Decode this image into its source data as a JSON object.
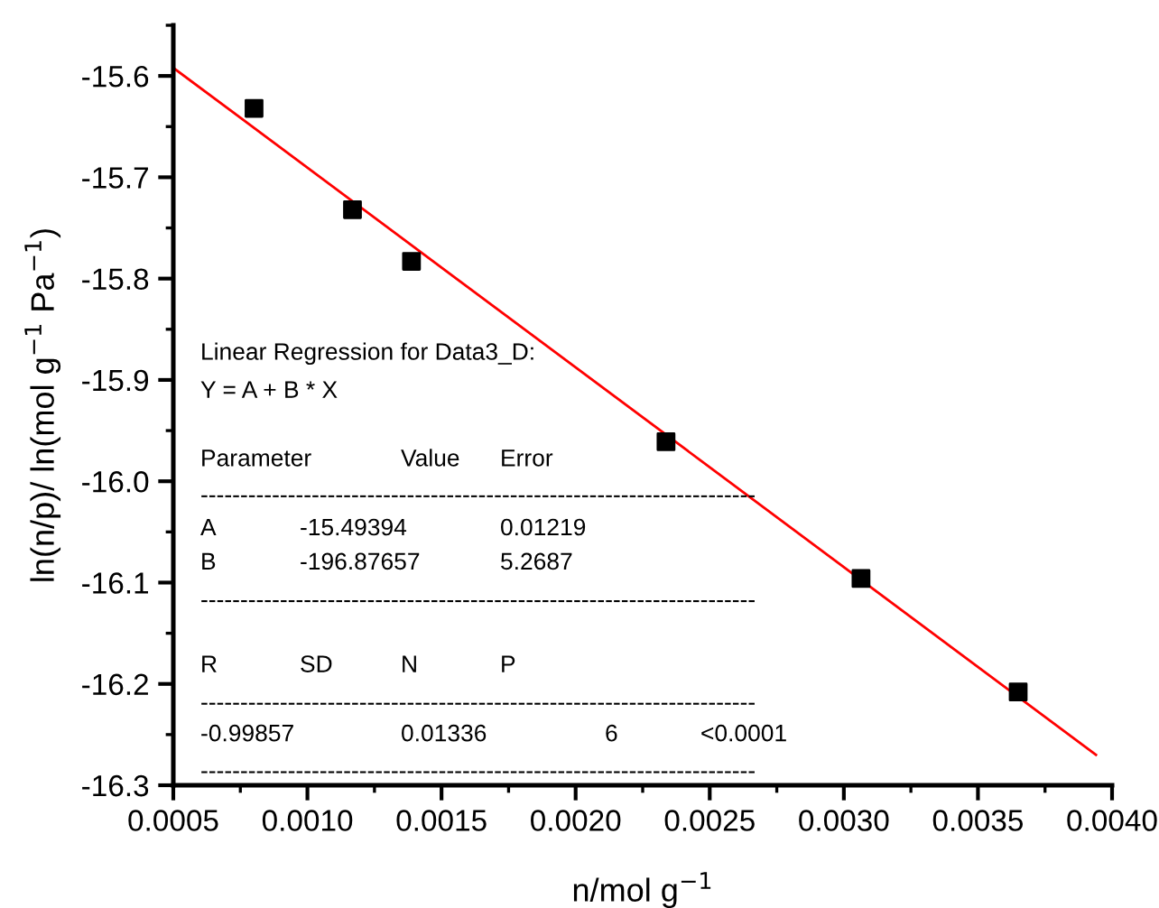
{
  "chart_data": {
    "type": "scatter",
    "xlabel": "n/mol g$^{−1}$",
    "ylabel": "ln(n/p)/ ln(mol g$^{−1}$ Pa$^{−1}$)",
    "xlim": [
      0.0005,
      0.004
    ],
    "ylim": [
      -16.3,
      -15.55
    ],
    "xticks": [
      {
        "value": 0.0005,
        "label": "0.0005"
      },
      {
        "value": 0.001,
        "label": "0.0010"
      },
      {
        "value": 0.0015,
        "label": "0.0015"
      },
      {
        "value": 0.002,
        "label": "0.0020"
      },
      {
        "value": 0.0025,
        "label": "0.0025"
      },
      {
        "value": 0.003,
        "label": "0.0030"
      },
      {
        "value": 0.0035,
        "label": "0.0035"
      },
      {
        "value": 0.004,
        "label": "0.0040"
      }
    ],
    "yticks": [
      -16.3,
      -16.2,
      -16.1,
      {
        "value": -16.0,
        "label": "-16.0"
      },
      -15.9,
      -15.8,
      -15.7,
      -15.6
    ],
    "grid": false,
    "legend": false,
    "series": [
      {
        "color": "#000000",
        "marker": "square",
        "x": [
          0.000801,
          0.001168,
          0.001388,
          0.002337,
          0.003064,
          0.00365
        ],
        "values": [
          -15.632,
          -15.732,
          -15.783,
          -15.961,
          -16.096,
          -16.208
        ]
      },
      {
        "type": "line",
        "color": "#ff0000",
        "marker": "none",
        "line_style": "solid",
        "x": [
          0.0005,
          0.00394
        ],
        "values": [
          -15.592,
          -16.27
        ]
      }
    ],
    "annotations": [
      "Linear Regression for Data3_D:",
      "Y = A + B * X",
      "Parameter",
      "Value",
      "Error",
      "A",
      "-15.49394",
      "0.01219",
      "B",
      "-196.87657",
      "5.2687",
      "R",
      "SD",
      "N",
      "P",
      "-0.99857",
      "0.01336",
      "6",
      "<0.0001",
      "----------------------------------------------------------------------",
      "----------------------------------------------------------------------",
      "----------------------------------------------------------------------",
      "----------------------------------------------------------------------"
    ]
  }
}
